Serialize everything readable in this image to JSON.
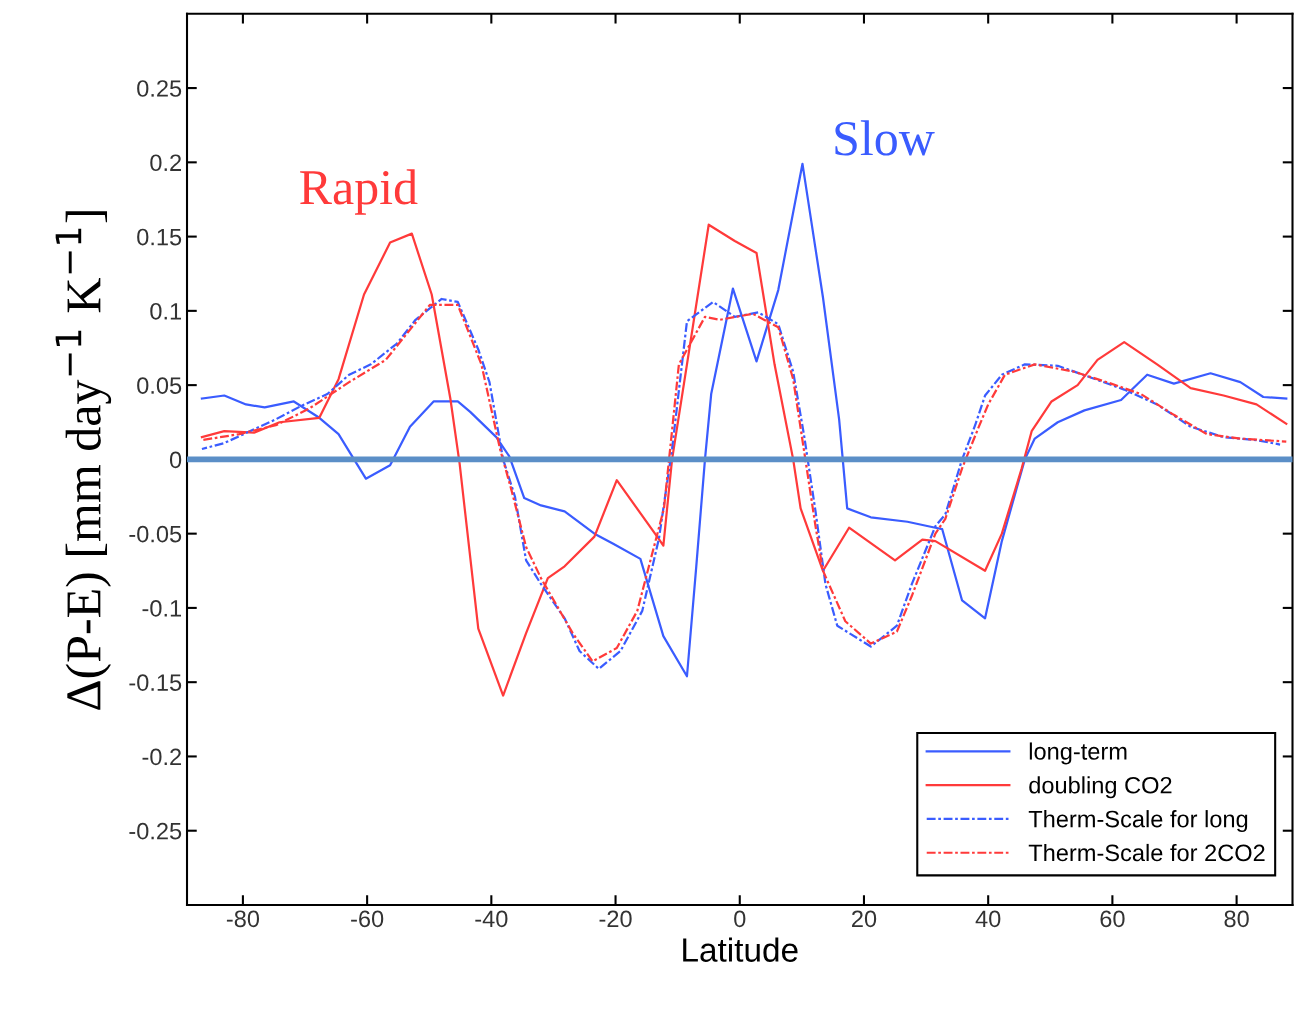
{
  "chart_data": {
    "type": "line",
    "xlabel": "Latitude",
    "ylabel": "Δ(P-E) [mm day$^{−1}$ K$^{−1}$]",
    "xlim": [
      -89,
      89
    ],
    "ylim": [
      -0.3,
      0.3
    ],
    "xticks": [
      -80,
      -60,
      -40,
      -20,
      0,
      20,
      40,
      60,
      80
    ],
    "yticks": [
      -0.25,
      -0.2,
      -0.15,
      -0.1,
      -0.05,
      0,
      0.05,
      0.1,
      0.15,
      0.2,
      0.25
    ],
    "grid": false,
    "legend": "bottom right",
    "ref_lines": [
      {
        "axis": "y",
        "value": 0,
        "label": null,
        "color": "#5b8fc7"
      }
    ],
    "annotations": [
      "Rapid",
      "Slow"
    ],
    "series": [
      {
        "name": "long-term",
        "color": "#3a5cff",
        "line_style": "solid",
        "x": [
          -86.6,
          -83.0,
          -79.5,
          -76.5,
          -71.8,
          -67.7,
          -64.6,
          -60.2,
          -56.3,
          -53.1,
          -49.3,
          -45.4,
          -43.4,
          -39.2,
          -37.1,
          -34.7,
          -32.0,
          -28.2,
          -23.4,
          -20.3,
          -16.0,
          -12.3,
          -8.5,
          -7.0,
          -5.6,
          -4.6,
          -1.1,
          2.7,
          6.2,
          10.1,
          13.4,
          16.0,
          17.3,
          21.1,
          27.0,
          31.5,
          32.6,
          35.8,
          39.5,
          42.2,
          45.9,
          47.5,
          51.2,
          55.5,
          61.4,
          65.6,
          69.9,
          75.8,
          80.6,
          84.3,
          88.0
        ],
        "values": [
          0.041,
          0.043,
          0.037,
          0.035,
          0.039,
          0.028,
          0.017,
          -0.013,
          -0.004,
          0.022,
          0.039,
          0.039,
          0.032,
          0.015,
          0.002,
          -0.026,
          -0.031,
          -0.035,
          -0.05,
          -0.057,
          -0.067,
          -0.119,
          -0.146,
          -0.072,
          0.0,
          0.044,
          0.115,
          0.066,
          0.114,
          0.199,
          0.109,
          0.027,
          -0.033,
          -0.039,
          -0.042,
          -0.046,
          -0.047,
          -0.095,
          -0.107,
          -0.055,
          0.0,
          0.014,
          0.025,
          0.033,
          0.04,
          0.057,
          0.051,
          0.058,
          0.052,
          0.042,
          0.041
        ]
      },
      {
        "name": "doubling CO2",
        "color": "#ff3a3a",
        "line_style": "solid",
        "x": [
          -86.6,
          -83.0,
          -78.2,
          -74.1,
          -67.7,
          -64.6,
          -60.5,
          -56.3,
          -52.8,
          -49.6,
          -46.6,
          -45.1,
          -42.1,
          -38.1,
          -34.4,
          -30.9,
          -28.2,
          -23.4,
          -19.8,
          -13.3,
          -12.3,
          -10.9,
          -8.5,
          -5.0,
          -0.8,
          2.7,
          5.6,
          8.6,
          9.8,
          13.4,
          17.6,
          25.0,
          29.4,
          31.5,
          39.5,
          42.2,
          45.4,
          47.0,
          50.2,
          54.4,
          57.6,
          61.9,
          67.2,
          72.6,
          77.9,
          83.2,
          88.0
        ],
        "values": [
          0.015,
          0.019,
          0.018,
          0.025,
          0.028,
          0.054,
          0.111,
          0.146,
          0.152,
          0.111,
          0.041,
          -0.003,
          -0.114,
          -0.159,
          -0.117,
          -0.08,
          -0.072,
          -0.052,
          -0.014,
          -0.052,
          -0.058,
          0.0,
          0.064,
          0.158,
          0.147,
          0.139,
          0.064,
          0.0,
          -0.033,
          -0.075,
          -0.046,
          -0.068,
          -0.054,
          -0.055,
          -0.075,
          -0.05,
          -0.006,
          0.019,
          0.039,
          0.05,
          0.067,
          0.079,
          0.064,
          0.048,
          0.043,
          0.037,
          0.024
        ]
      },
      {
        "name": "Therm-Scale for long",
        "color": "#3a5cff",
        "line_style": "dashdot",
        "x": [
          -86.6,
          -83.0,
          -74.7,
          -70.6,
          -66.4,
          -62.9,
          -59.4,
          -55.2,
          -52.2,
          -48.0,
          -45.4,
          -42.1,
          -40.3,
          -38.1,
          -36.2,
          -34.4,
          -32.0,
          -28.2,
          -25.8,
          -22.7,
          -19.2,
          -15.7,
          -13.0,
          -10.9,
          -8.5,
          -4.3,
          -0.8,
          3.0,
          6.2,
          8.6,
          10.4,
          12.2,
          13.8,
          15.7,
          21.1,
          25.3,
          27.7,
          31.5,
          33.1,
          35.8,
          37.9,
          39.5,
          42.2,
          45.9,
          51.2,
          56.6,
          61.9,
          67.2,
          72.6,
          77.9,
          83.2,
          87.0
        ],
        "values": [
          0.007,
          0.011,
          0.027,
          0.036,
          0.044,
          0.057,
          0.064,
          0.078,
          0.094,
          0.108,
          0.106,
          0.074,
          0.052,
          0.0,
          -0.025,
          -0.068,
          -0.084,
          -0.107,
          -0.129,
          -0.141,
          -0.129,
          -0.102,
          -0.053,
          0.007,
          0.093,
          0.106,
          0.096,
          0.099,
          0.091,
          0.059,
          0.015,
          -0.035,
          -0.084,
          -0.112,
          -0.126,
          -0.112,
          -0.084,
          -0.045,
          -0.037,
          0.0,
          0.023,
          0.043,
          0.057,
          0.064,
          0.063,
          0.055,
          0.047,
          0.037,
          0.022,
          0.015,
          0.013,
          0.01
        ]
      },
      {
        "name": "Therm-Scale for 2CO2",
        "color": "#ff3a3a",
        "line_style": "dashdot",
        "x": [
          -86.6,
          -80.6,
          -74.7,
          -69.4,
          -62.9,
          -57.0,
          -52.2,
          -49.9,
          -45.4,
          -41.6,
          -38.6,
          -36.8,
          -34.4,
          -32.0,
          -26.9,
          -23.7,
          -19.8,
          -16.5,
          -12.2,
          -9.8,
          -5.6,
          -3.2,
          2.1,
          6.2,
          8.6,
          12.2,
          13.4,
          17.0,
          21.1,
          25.3,
          27.7,
          31.5,
          33.1,
          35.8,
          38.4,
          40.0,
          42.7,
          47.5,
          53.9,
          59.8,
          64.6,
          69.9,
          75.2,
          80.6,
          88.0
        ],
        "values": [
          0.013,
          0.017,
          0.023,
          0.034,
          0.052,
          0.067,
          0.092,
          0.104,
          0.104,
          0.064,
          0.007,
          -0.02,
          -0.059,
          -0.08,
          -0.117,
          -0.136,
          -0.127,
          -0.102,
          -0.033,
          0.064,
          0.096,
          0.094,
          0.098,
          0.089,
          0.054,
          -0.045,
          -0.075,
          -0.109,
          -0.124,
          -0.116,
          -0.092,
          -0.05,
          -0.04,
          -0.006,
          0.021,
          0.037,
          0.057,
          0.064,
          0.059,
          0.051,
          0.044,
          0.03,
          0.017,
          0.014,
          0.012
        ]
      }
    ]
  }
}
